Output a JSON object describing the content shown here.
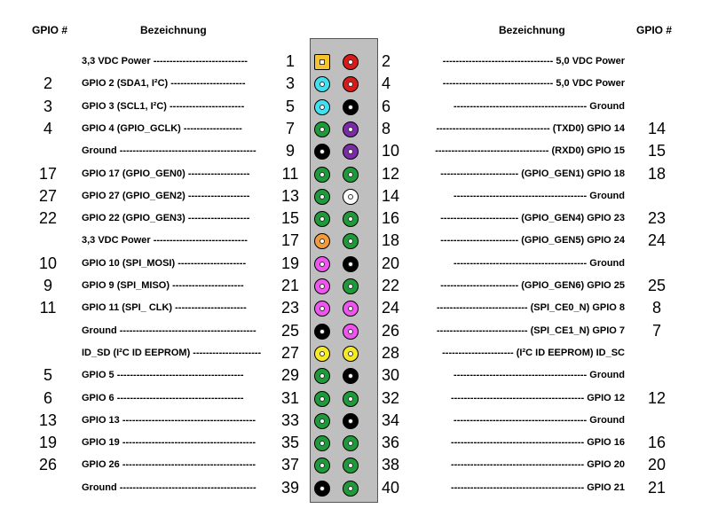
{
  "headers": {
    "gpio_left": "GPIO #",
    "bez_left": "Bezeichnung",
    "bez_right": "Bezeichnung",
    "gpio_right": "GPIO #"
  },
  "colors": {
    "power33": "#f4c430",
    "power5": "#d91a1a",
    "i2c": "#40e0f0",
    "ground": "#000000",
    "uart": "#7b2aa8",
    "gpio": "#1f9a3a",
    "dnc_white": "#ffffff",
    "power33_alt": "#f39a3a",
    "spi": "#ee55ee",
    "id_eeprom": "#f6ea25"
  },
  "pins": [
    {
      "num": "1",
      "gpio": "",
      "desc": "3,3 VDC Power -----------------------------",
      "color": "power33",
      "shape": "square"
    },
    {
      "num": "2",
      "gpio": "",
      "desc": "---------------------------------- 5,0 VDC Power",
      "color": "power5"
    },
    {
      "num": "3",
      "gpio": "2",
      "desc": "GPIO  2 (SDA1, I²C) -----------------------",
      "color": "i2c"
    },
    {
      "num": "4",
      "gpio": "",
      "desc": "---------------------------------- 5,0 VDC Power",
      "color": "power5"
    },
    {
      "num": "5",
      "gpio": "3",
      "desc": "GPIO  3 (SCL1, I²C) -----------------------",
      "color": "i2c"
    },
    {
      "num": "6",
      "gpio": "",
      "desc": "----------------------------------------- Ground",
      "color": "ground"
    },
    {
      "num": "7",
      "gpio": "4",
      "desc": "GPIO  4 (GPIO_GCLK) ------------------",
      "color": "gpio"
    },
    {
      "num": "8",
      "gpio": "14",
      "desc": "----------------------------------- (TXD0) GPIO 14",
      "color": "uart"
    },
    {
      "num": "9",
      "gpio": "",
      "desc": "Ground ------------------------------------------",
      "color": "ground"
    },
    {
      "num": "10",
      "gpio": "15",
      "desc": "----------------------------------- (RXD0) GPIO 15",
      "color": "uart"
    },
    {
      "num": "11",
      "gpio": "17",
      "desc": "GPIO 17 (GPIO_GEN0) -------------------",
      "color": "gpio"
    },
    {
      "num": "12",
      "gpio": "18",
      "desc": "------------------------ (GPIO_GEN1) GPIO 18",
      "color": "gpio"
    },
    {
      "num": "13",
      "gpio": "27",
      "desc": "GPIO 27 (GPIO_GEN2) -------------------",
      "color": "gpio"
    },
    {
      "num": "14",
      "gpio": "",
      "desc": "----------------------------------------- Ground",
      "color": "dnc_white"
    },
    {
      "num": "15",
      "gpio": "22",
      "desc": "GPIO 22 (GPIO_GEN3) -------------------",
      "color": "gpio"
    },
    {
      "num": "16",
      "gpio": "23",
      "desc": "------------------------ (GPIO_GEN4) GPIO 23",
      "color": "gpio"
    },
    {
      "num": "17",
      "gpio": "",
      "desc": "3,3 VDC Power -----------------------------",
      "color": "power33_alt"
    },
    {
      "num": "18",
      "gpio": "24",
      "desc": "------------------------ (GPIO_GEN5) GPIO 24",
      "color": "gpio"
    },
    {
      "num": "19",
      "gpio": "10",
      "desc": "GPIO 10 (SPI_MOSI) ---------------------",
      "color": "spi"
    },
    {
      "num": "20",
      "gpio": "",
      "desc": "-----------------------------------------  Ground",
      "color": "ground"
    },
    {
      "num": "21",
      "gpio": "9",
      "desc": "GPIO  9 (SPI_MISO) ----------------------",
      "color": "spi"
    },
    {
      "num": "22",
      "gpio": "25",
      "desc": "------------------------ (GPIO_GEN6) GPIO 25",
      "color": "gpio"
    },
    {
      "num": "23",
      "gpio": "11",
      "desc": "GPIO 11 (SPI_ CLK) ----------------------",
      "color": "spi"
    },
    {
      "num": "24",
      "gpio": "8",
      "desc": "---------------------------- (SPI_CE0_N) GPIO 8",
      "color": "spi"
    },
    {
      "num": "25",
      "gpio": "",
      "desc": "Ground ------------------------------------------",
      "color": "ground"
    },
    {
      "num": "26",
      "gpio": "7",
      "desc": "---------------------------- (SPI_CE1_N) GPIO 7",
      "color": "spi"
    },
    {
      "num": "27",
      "gpio": "",
      "desc": "ID_SD (I²C ID EEPROM) ---------------------",
      "color": "id_eeprom"
    },
    {
      "num": "28",
      "gpio": "",
      "desc": "---------------------- (I²C ID EEPROM) ID_SC",
      "color": "id_eeprom"
    },
    {
      "num": "29",
      "gpio": "5",
      "desc": "GPIO  5  ---------------------------------------",
      "color": "gpio"
    },
    {
      "num": "30",
      "gpio": "",
      "desc": "----------------------------------------- Ground",
      "color": "ground"
    },
    {
      "num": "31",
      "gpio": "6",
      "desc": "GPIO  6  ---------------------------------------",
      "color": "gpio"
    },
    {
      "num": "32",
      "gpio": "12",
      "desc": "----------------------------------------- GPIO 12",
      "color": "gpio"
    },
    {
      "num": "33",
      "gpio": "13",
      "desc": "GPIO 13 -----------------------------------------",
      "color": "gpio"
    },
    {
      "num": "34",
      "gpio": "",
      "desc": "----------------------------------------- Ground",
      "color": "ground"
    },
    {
      "num": "35",
      "gpio": "19",
      "desc": "GPIO 19 -----------------------------------------",
      "color": "gpio"
    },
    {
      "num": "36",
      "gpio": "16",
      "desc": "----------------------------------------- GPIO 16",
      "color": "gpio"
    },
    {
      "num": "37",
      "gpio": "26",
      "desc": "GPIO 26 -----------------------------------------",
      "color": "gpio"
    },
    {
      "num": "38",
      "gpio": "20",
      "desc": "----------------------------------------- GPIO 20",
      "color": "gpio"
    },
    {
      "num": "39",
      "gpio": "",
      "desc": "Ground ------------------------------------------",
      "color": "ground"
    },
    {
      "num": "40",
      "gpio": "21",
      "desc": "----------------------------------------- GPIO 21",
      "color": "gpio"
    }
  ]
}
